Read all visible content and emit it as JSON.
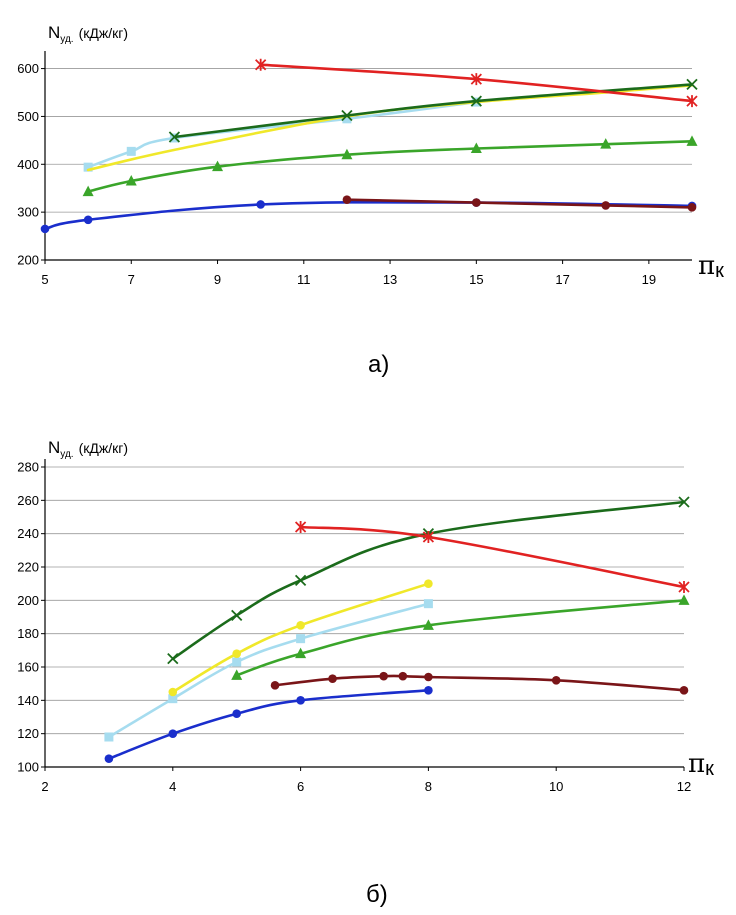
{
  "chart_data": [
    {
      "type": "line",
      "caption": "а)",
      "ylabel": {
        "main": "N",
        "sub": "уд.",
        "unit": "(кДж/кг)"
      },
      "xlabel": {
        "main": "π",
        "sub": "к"
      },
      "xlim": [
        5,
        20
      ],
      "ylim": [
        200,
        620
      ],
      "xticks": [
        5,
        7,
        9,
        11,
        13,
        15,
        17,
        19
      ],
      "yticks": [
        200,
        300,
        400,
        500,
        600
      ],
      "grid": true,
      "series": [
        {
          "color": "#1a2ecc",
          "marker": "circle",
          "smooth": true,
          "x": [
            5,
            6,
            10,
            15,
            20
          ],
          "y": [
            265,
            284,
            316,
            320,
            313
          ]
        },
        {
          "color": "#7a1518",
          "marker": "circle",
          "smooth": true,
          "x": [
            12,
            15,
            18,
            20
          ],
          "y": [
            326,
            320,
            314,
            310
          ]
        },
        {
          "color": "#3aa52a",
          "marker": "triangle",
          "smooth": true,
          "x": [
            6,
            7,
            9,
            12,
            15,
            18,
            20
          ],
          "y": [
            343,
            365,
            395,
            420,
            433,
            442,
            448
          ]
        },
        {
          "color": "#a6dcef",
          "marker": "square",
          "smooth": true,
          "x": [
            6,
            7,
            8,
            12,
            15
          ],
          "y": [
            394,
            427,
            455,
            495,
            530
          ]
        },
        {
          "color": "#f0e82a",
          "marker": "none",
          "smooth": true,
          "x": [
            6,
            8,
            12,
            15,
            18,
            20
          ],
          "y": [
            388,
            430,
            500,
            530,
            550,
            565
          ]
        },
        {
          "color": "#1b6b1b",
          "marker": "x",
          "smooth": true,
          "x": [
            8,
            12,
            15,
            20
          ],
          "y": [
            457,
            502,
            532,
            567
          ]
        },
        {
          "color": "#e12222",
          "marker": "star",
          "smooth": true,
          "x": [
            10,
            15,
            20
          ],
          "y": [
            608,
            578,
            532
          ]
        }
      ]
    },
    {
      "type": "line",
      "caption": "б)",
      "ylabel": {
        "main": "N",
        "sub": "уд.",
        "unit": "(кДж/кг)"
      },
      "xlabel": {
        "main": "π",
        "sub": "к"
      },
      "xlim": [
        2,
        12
      ],
      "ylim": [
        100,
        280
      ],
      "xticks": [
        2,
        4,
        6,
        8,
        10,
        12
      ],
      "yticks": [
        100,
        120,
        140,
        160,
        180,
        200,
        220,
        240,
        260,
        280
      ],
      "grid": true,
      "series": [
        {
          "color": "#1a2ecc",
          "marker": "circle",
          "smooth": true,
          "x": [
            3,
            4,
            5,
            6,
            8
          ],
          "y": [
            105,
            120,
            132,
            140,
            146
          ]
        },
        {
          "color": "#7a1518",
          "marker": "circle",
          "smooth": true,
          "x": [
            5.6,
            6.5,
            7.3,
            7.6,
            8,
            10,
            12
          ],
          "y": [
            149,
            153,
            154.5,
            154.5,
            154,
            152,
            146
          ]
        },
        {
          "color": "#3aa52a",
          "marker": "triangle",
          "smooth": true,
          "x": [
            5,
            6,
            8,
            12
          ],
          "y": [
            155,
            168,
            185,
            200
          ]
        },
        {
          "color": "#a6dcef",
          "marker": "square",
          "smooth": true,
          "x": [
            3,
            4,
            5,
            6,
            8
          ],
          "y": [
            118,
            141,
            163,
            177,
            198
          ]
        },
        {
          "color": "#f0e82a",
          "marker": "circle",
          "smooth": true,
          "x": [
            4,
            5,
            6,
            8
          ],
          "y": [
            145,
            168,
            185,
            210
          ]
        },
        {
          "color": "#1b6b1b",
          "marker": "x",
          "smooth": true,
          "x": [
            4,
            5,
            6,
            8,
            12
          ],
          "y": [
            165,
            191,
            212,
            240,
            259
          ]
        },
        {
          "color": "#e12222",
          "marker": "star",
          "smooth": true,
          "x": [
            6,
            8,
            12
          ],
          "y": [
            244,
            238,
            208
          ]
        }
      ]
    }
  ]
}
